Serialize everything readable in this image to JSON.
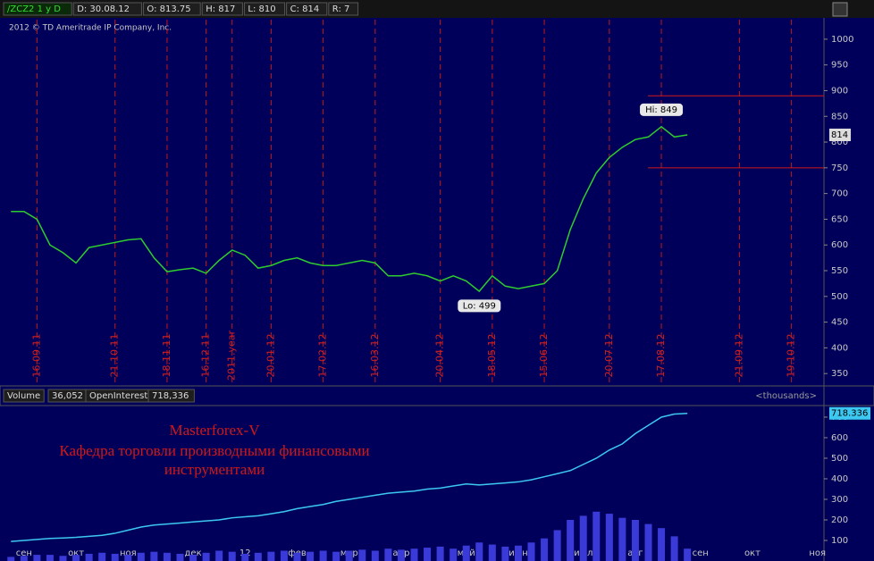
{
  "header": {
    "fields": [
      "/ZCZ2 1 y D",
      "D: 30.08.12",
      "O: 813.75",
      "H: 817",
      "L: 810",
      "C: 814",
      "R: 7"
    ],
    "copyright": "2012 © TD Ameritrade IP Company, Inc."
  },
  "lower_header": {
    "volume_value": "36,052",
    "open_interest_value": "718,336",
    "units": "<thousands>"
  },
  "watermark": [
    "Masterforex-V",
    "Кафедра торговли производными финансовыми",
    "инструментами"
  ],
  "chart_data": [
    {
      "type": "line",
      "color": "#2ecc2e",
      "categories": [
        null,
        null,
        "16.09.11",
        null,
        null,
        null,
        null,
        null,
        "21.10.11",
        null,
        null,
        null,
        "18.11.11",
        null,
        null,
        "16.12.11",
        null,
        "2011.year",
        null,
        null,
        "20.01.12",
        null,
        null,
        null,
        "17.02.12",
        null,
        null,
        null,
        "16.03.12",
        null,
        null,
        null,
        null,
        "20.04.12",
        null,
        null,
        null,
        "18.05.12",
        null,
        null,
        null,
        "15.06.12",
        null,
        null,
        null,
        null,
        "20.07.12",
        null,
        null,
        null,
        "17.08.12",
        null,
        null,
        null,
        null,
        null,
        "21.09.12",
        null,
        null,
        null,
        "19.10.12",
        null,
        null
      ],
      "values": [
        665,
        665,
        650,
        600,
        585,
        565,
        595,
        600,
        605,
        610,
        612,
        575,
        548,
        552,
        555,
        545,
        570,
        590,
        580,
        555,
        560,
        570,
        575,
        565,
        560,
        560,
        565,
        570,
        565,
        540,
        540,
        545,
        540,
        530,
        540,
        530,
        510,
        540,
        520,
        515,
        520,
        525,
        550,
        630,
        690,
        740,
        770,
        790,
        805,
        810,
        830,
        810,
        814,
        null,
        null,
        null,
        null,
        null,
        null,
        null,
        null,
        null,
        null
      ],
      "ylim": [
        326,
        1038
      ],
      "yticks": [
        350,
        400,
        450,
        500,
        550,
        600,
        650,
        700,
        750,
        800,
        850,
        900,
        950,
        1000
      ],
      "annotations": [
        {
          "text": "Hi: 849",
          "value": 849
        },
        {
          "text": "Lo: 499",
          "value": 499
        }
      ],
      "hlines": [
        890,
        750
      ],
      "grid": false
    },
    {
      "type": "volume",
      "categories": [
        null,
        "сен",
        null,
        null,
        null,
        "окт",
        null,
        null,
        null,
        "ноя",
        null,
        null,
        null,
        null,
        "дек",
        null,
        null,
        null,
        "12",
        null,
        null,
        null,
        "фев",
        null,
        null,
        null,
        "мар",
        null,
        null,
        null,
        "апр",
        null,
        null,
        null,
        null,
        "май",
        null,
        null,
        null,
        "июн",
        null,
        null,
        null,
        null,
        "июл",
        null,
        null,
        null,
        "авг",
        null,
        null,
        null,
        null,
        "сен",
        null,
        null,
        null,
        "окт",
        null,
        null,
        null,
        null,
        "ноя"
      ],
      "series": [
        {
          "name": "Volume",
          "color": "#3a3ad8",
          "values": [
            20,
            25,
            30,
            30,
            25,
            30,
            35,
            40,
            35,
            30,
            40,
            45,
            40,
            35,
            30,
            40,
            50,
            45,
            35,
            40,
            45,
            50,
            40,
            45,
            50,
            45,
            50,
            55,
            50,
            60,
            55,
            60,
            65,
            70,
            60,
            75,
            90,
            80,
            70,
            75,
            90,
            110,
            150,
            200,
            220,
            240,
            230,
            210,
            200,
            180,
            160,
            120,
            60,
            null,
            null,
            null,
            null,
            null,
            null,
            null,
            null,
            null,
            null
          ]
        },
        {
          "name": "OpenInterest",
          "color": "#3cc8f0",
          "values": [
            95,
            100,
            105,
            110,
            112,
            115,
            120,
            125,
            135,
            150,
            165,
            175,
            180,
            185,
            190,
            195,
            200,
            210,
            215,
            220,
            230,
            240,
            255,
            265,
            275,
            290,
            300,
            310,
            320,
            330,
            335,
            340,
            350,
            355,
            365,
            375,
            370,
            375,
            380,
            385,
            395,
            410,
            425,
            440,
            470,
            500,
            540,
            570,
            620,
            660,
            700,
            715,
            718.336,
            null,
            null,
            null,
            null,
            null,
            null,
            null,
            null,
            null,
            null
          ]
        }
      ],
      "ylim": [
        0,
        752
      ],
      "yticks": [
        100,
        200,
        300,
        400,
        500,
        600,
        700
      ]
    }
  ]
}
